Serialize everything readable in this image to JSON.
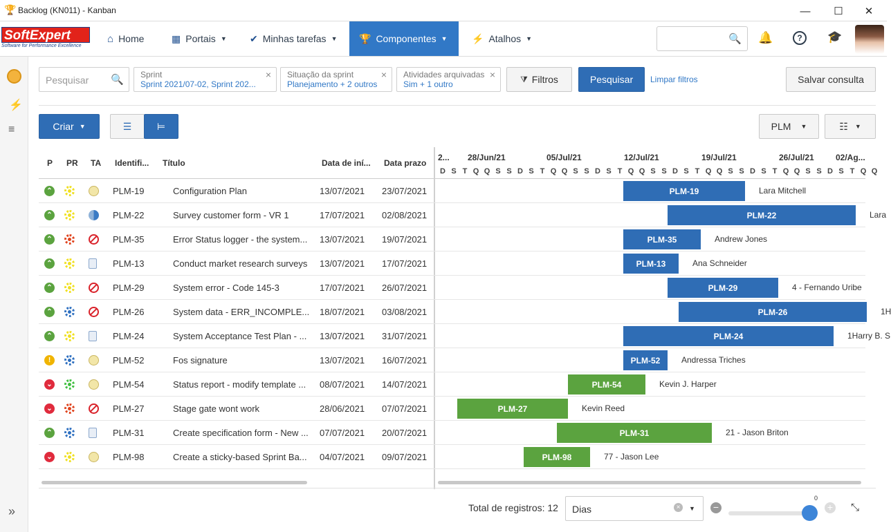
{
  "window": {
    "title": "Backlog (KN011) - Kanban"
  },
  "nav": {
    "items": [
      "Home",
      "Portais",
      "Minhas tarefas",
      "Componentes",
      "Atalhos"
    ],
    "logo_text": "SoftExpert",
    "logo_sub": "Software for Performance Excellence"
  },
  "filters": {
    "search_placeholder": "Pesquisar",
    "chips": [
      {
        "label": "Sprint",
        "value": "Sprint 2021/07-02, Sprint 202..."
      },
      {
        "label": "Situação da sprint",
        "value": "Planejamento + 2 outros"
      },
      {
        "label": "Atividades arquivadas",
        "value": "Sim + 1 outro"
      }
    ],
    "filtros_btn": "Filtros",
    "search_btn": "Pesquisar",
    "clear_link": "Limpar filtros",
    "save_btn": "Salvar consulta"
  },
  "toolbar": {
    "create_btn": "Criar",
    "plm_dropdown": "PLM"
  },
  "table": {
    "headers": [
      "P",
      "PR",
      "TA",
      "Identifi...",
      "Título",
      "Data de iní...",
      "Data prazo"
    ],
    "rows": [
      {
        "id": "PLM-19",
        "title": "Configuration Plan",
        "start": "13/07/2021",
        "due": "23/07/2021",
        "p": "up",
        "pr": "yellow",
        "ta": "clock"
      },
      {
        "id": "PLM-22",
        "title": "Survey customer form - VR 1",
        "start": "17/07/2021",
        "due": "02/08/2021",
        "p": "up",
        "pr": "yellow",
        "ta": "half"
      },
      {
        "id": "PLM-35",
        "title": "Error Status logger - the system...",
        "start": "13/07/2021",
        "due": "19/07/2021",
        "p": "up",
        "pr": "red",
        "ta": "block"
      },
      {
        "id": "PLM-13",
        "title": "Conduct market research surveys",
        "start": "13/07/2021",
        "due": "17/07/2021",
        "p": "up",
        "pr": "yellow",
        "ta": "doc"
      },
      {
        "id": "PLM-29",
        "title": "System error - Code 145-3",
        "start": "17/07/2021",
        "due": "26/07/2021",
        "p": "up",
        "pr": "yellow",
        "ta": "block"
      },
      {
        "id": "PLM-26",
        "title": "System data - ERR_INCOMPLE...",
        "start": "18/07/2021",
        "due": "03/08/2021",
        "p": "up",
        "pr": "blue",
        "ta": "block"
      },
      {
        "id": "PLM-24",
        "title": "System Acceptance Test Plan - ...",
        "start": "13/07/2021",
        "due": "31/07/2021",
        "p": "up",
        "pr": "yellow",
        "ta": "doc"
      },
      {
        "id": "PLM-52",
        "title": "Fos signature",
        "start": "13/07/2021",
        "due": "16/07/2021",
        "p": "warn",
        "pr": "blue",
        "ta": "clock"
      },
      {
        "id": "PLM-54",
        "title": "Status report - modify template ...",
        "start": "08/07/2021",
        "due": "14/07/2021",
        "p": "down",
        "pr": "green",
        "ta": "clock"
      },
      {
        "id": "PLM-27",
        "title": "Stage gate wont work",
        "start": "28/06/2021",
        "due": "07/07/2021",
        "p": "down",
        "pr": "red",
        "ta": "block"
      },
      {
        "id": "PLM-31",
        "title": "Create specification form - New ...",
        "start": "07/07/2021",
        "due": "20/07/2021",
        "p": "up",
        "pr": "blue",
        "ta": "doc"
      },
      {
        "id": "PLM-98",
        "title": "Create a sticky-based Sprint Ba...",
        "start": "04/07/2021",
        "due": "09/07/2021",
        "p": "down",
        "pr": "yellow",
        "ta": "clock"
      }
    ]
  },
  "gantt": {
    "weeks": [
      "2...",
      "28/Jun/21",
      "05/Jul/21",
      "12/Jul/21",
      "19/Jul/21",
      "26/Jul/21",
      "02/Ag..."
    ],
    "days": [
      "D",
      "S",
      "T",
      "Q",
      "Q",
      "S",
      "S",
      "D",
      "S",
      "T",
      "Q",
      "Q",
      "S",
      "S",
      "D",
      "S",
      "T",
      "Q",
      "Q",
      "S",
      "S",
      "D",
      "S",
      "T",
      "Q",
      "Q",
      "S",
      "S",
      "D",
      "S",
      "T",
      "Q",
      "Q",
      "S",
      "S",
      "D",
      "S",
      "T",
      "Q",
      "Q"
    ],
    "bars": [
      {
        "label": "PLM-19",
        "owner": "Lara Mitchell",
        "color": "blue"
      },
      {
        "label": "PLM-22",
        "owner": "Lara",
        "color": "blue"
      },
      {
        "label": "PLM-35",
        "owner": "Andrew Jones",
        "color": "blue"
      },
      {
        "label": "PLM-13",
        "owner": "Ana Schneider",
        "color": "blue"
      },
      {
        "label": "PLM-29",
        "owner": "4 - Fernando Uribe",
        "color": "blue"
      },
      {
        "label": "PLM-26",
        "owner": "1H",
        "color": "blue"
      },
      {
        "label": "PLM-24",
        "owner": "1Harry B. S",
        "color": "blue"
      },
      {
        "label": "PLM-52",
        "owner": "Andressa Triches",
        "color": "blue"
      },
      {
        "label": "PLM-54",
        "owner": "Kevin J. Harper",
        "color": "green"
      },
      {
        "label": "PLM-27",
        "owner": "Kevin Reed",
        "color": "green"
      },
      {
        "label": "PLM-31",
        "owner": "21 - Jason Briton",
        "color": "green"
      },
      {
        "label": "PLM-98",
        "owner": "77 - Jason Lee",
        "color": "green"
      }
    ]
  },
  "footer": {
    "total_label": "Total de registros: 12",
    "scale_value": "Dias",
    "zoom_value": "0"
  },
  "colors": {
    "primary": "#3178c6",
    "bar_blue": "#2f6db5",
    "bar_green": "#5ba33f"
  }
}
